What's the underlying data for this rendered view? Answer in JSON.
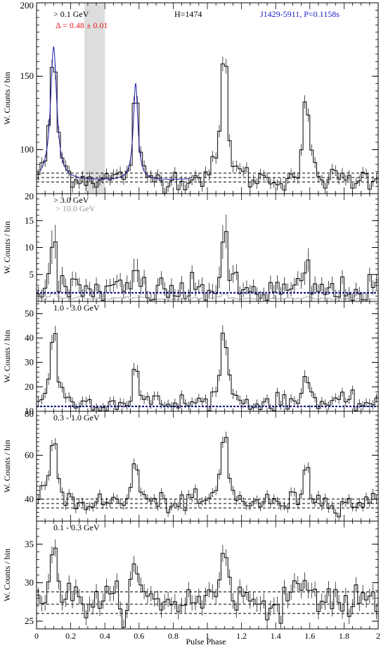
{
  "colors": {
    "axis": "#000000",
    "histogram": "#000000",
    "fit_curve": "#1a1aaa",
    "annotation_red": "#e8191c",
    "annotation_blue": "#1f1fcc",
    "secondary_gray": "#999999",
    "band_fill": "#dddddd",
    "high_energy_background_line": "#000080"
  },
  "x_axis": {
    "label": "Pulse Phase",
    "range": [
      0,
      2
    ],
    "ticks": [
      "0",
      "0.2",
      "0.4",
      "0.6",
      "0.8",
      "1",
      "1.2",
      "1.4",
      "1.6",
      "1.8",
      "2"
    ]
  },
  "header": {
    "h_test": "H=1474",
    "pulsar": "J1429-5911, P=0.1158s",
    "delta": "Δ = 0.48 ± 0.01"
  },
  "chart_data": [
    {
      "type": "histogram",
      "panel": 1,
      "energy_label": "> 0.1 GeV",
      "secondary_label": "",
      "ylabel": "W. Counts / bin",
      "ylim": [
        70,
        200
      ],
      "y_ticks": [
        100,
        150,
        200
      ],
      "background_levels": [
        78,
        81,
        84
      ],
      "off_pulse_band": [
        0.28,
        0.4
      ],
      "peak1": 0.1,
      "peak2": 0.58,
      "amp1": 91,
      "amp2": 66,
      "w1": 0.022,
      "w2": 0.016,
      "baseline": 79,
      "noise": 4.0,
      "fit_curve": true,
      "x_bin_count": 100
    },
    {
      "type": "histogram",
      "panel": 2,
      "energy_label": "> 3.0 GeV",
      "secondary_label": "> 10.0 GeV",
      "ylabel": "W. Counts / bin",
      "ylim": [
        0,
        20
      ],
      "y_ticks": [
        5,
        10,
        15,
        20
      ],
      "background_levels": [
        1.6
      ],
      "peak1": 0.1,
      "peak2": 0.58,
      "amp1": 13,
      "amp2": 6,
      "w1": 0.016,
      "w2": 0.012,
      "baseline": 1.8,
      "noise": 1.4,
      "fit_curve": false,
      "x_bin_count": 100
    },
    {
      "type": "histogram",
      "panel": 3,
      "energy_label": "1.0 - 3.0 GeV",
      "secondary_label": "",
      "ylabel": "W. Counts / bin",
      "ylim": [
        10,
        55
      ],
      "y_ticks": [
        10,
        20,
        30,
        40,
        50
      ],
      "background_levels": [
        12
      ],
      "peak1": 0.1,
      "peak2": 0.58,
      "amp1": 34,
      "amp2": 20,
      "w1": 0.02,
      "w2": 0.014,
      "baseline": 13,
      "noise": 2.0,
      "fit_curve": false,
      "x_bin_count": 100
    },
    {
      "type": "histogram",
      "panel": 4,
      "energy_label": "0.3 - 1.0 GeV",
      "secondary_label": "",
      "ylabel": "W. Counts / bin",
      "ylim": [
        30,
        80
      ],
      "y_ticks": [
        40,
        60,
        80
      ],
      "background_levels": [
        36,
        38,
        40
      ],
      "peak1": 0.1,
      "peak2": 0.58,
      "amp1": 34,
      "amp2": 24,
      "w1": 0.022,
      "w2": 0.016,
      "baseline": 38,
      "noise": 2.2,
      "fit_curve": false,
      "x_bin_count": 100
    },
    {
      "type": "histogram",
      "panel": 5,
      "energy_label": "0.1 - 0.3 GeV",
      "secondary_label": "",
      "ylabel": "W. Counts / bin",
      "ylim": [
        24,
        38
      ],
      "y_ticks": [
        25,
        30,
        35
      ],
      "background_levels": [
        26,
        27.2,
        28.8
      ],
      "peak1": 0.1,
      "peak2": 0.58,
      "amp1": 8,
      "amp2": 5,
      "w1": 0.024,
      "w2": 0.018,
      "baseline": 27.5,
      "noise": 1.1,
      "fit_curve": false,
      "x_bin_count": 100
    }
  ]
}
